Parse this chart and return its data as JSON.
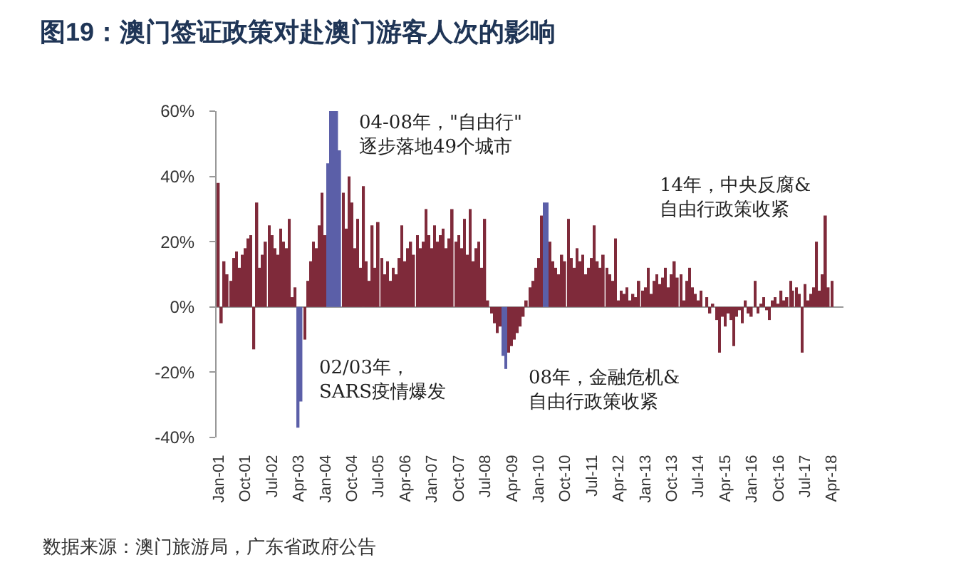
{
  "chart_data": {
    "type": "bar",
    "title": "图19：澳门签证政策对赴澳门游客人次的影响",
    "x": [
      "2001-01",
      "2001-02",
      "2001-03",
      "2001-04",
      "2001-05",
      "2001-06",
      "2001-07",
      "2001-08",
      "2001-09",
      "2001-10",
      "2001-11",
      "2001-12",
      "2002-01",
      "2002-02",
      "2002-03",
      "2002-04",
      "2002-05",
      "2002-06",
      "2002-07",
      "2002-08",
      "2002-09",
      "2002-10",
      "2002-11",
      "2002-12",
      "2003-01",
      "2003-02",
      "2003-03",
      "2003-04",
      "2003-05",
      "2003-06",
      "2003-07",
      "2003-08",
      "2003-09",
      "2003-10",
      "2003-11",
      "2003-12",
      "2004-01",
      "2004-02",
      "2004-03",
      "2004-04",
      "2004-05",
      "2004-06",
      "2004-07",
      "2004-08",
      "2004-09",
      "2004-10",
      "2004-11",
      "2004-12",
      "2005-01",
      "2005-02",
      "2005-03",
      "2005-04",
      "2005-05",
      "2005-06",
      "2005-07",
      "2005-08",
      "2005-09",
      "2005-10",
      "2005-11",
      "2005-12",
      "2006-01",
      "2006-02",
      "2006-03",
      "2006-04",
      "2006-05",
      "2006-06",
      "2006-07",
      "2006-08",
      "2006-09",
      "2006-10",
      "2006-11",
      "2006-12",
      "2007-01",
      "2007-02",
      "2007-03",
      "2007-04",
      "2007-05",
      "2007-06",
      "2007-07",
      "2007-08",
      "2007-09",
      "2007-10",
      "2007-11",
      "2007-12",
      "2008-01",
      "2008-02",
      "2008-03",
      "2008-04",
      "2008-05",
      "2008-06",
      "2008-07",
      "2008-08",
      "2008-09",
      "2008-10",
      "2008-11",
      "2008-12",
      "2009-01",
      "2009-02",
      "2009-03",
      "2009-04",
      "2009-05",
      "2009-06",
      "2009-07",
      "2009-08",
      "2009-09",
      "2009-10",
      "2009-11",
      "2009-12",
      "2010-01",
      "2010-02",
      "2010-03",
      "2010-04",
      "2010-05",
      "2010-06",
      "2010-07",
      "2010-08",
      "2010-09",
      "2010-10",
      "2010-11",
      "2010-12",
      "2011-01",
      "2011-02",
      "2011-03",
      "2011-04",
      "2011-05",
      "2011-06",
      "2011-07",
      "2011-08",
      "2011-09",
      "2011-10",
      "2011-11",
      "2011-12",
      "2012-01",
      "2012-02",
      "2012-03",
      "2012-04",
      "2012-05",
      "2012-06",
      "2012-07",
      "2012-08",
      "2012-09",
      "2012-10",
      "2012-11",
      "2012-12",
      "2013-01",
      "2013-02",
      "2013-03",
      "2013-04",
      "2013-05",
      "2013-06",
      "2013-07",
      "2013-08",
      "2013-09",
      "2013-10",
      "2013-11",
      "2013-12",
      "2014-01",
      "2014-02",
      "2014-03",
      "2014-04",
      "2014-05",
      "2014-06",
      "2014-07",
      "2014-08",
      "2014-09",
      "2014-10",
      "2014-11",
      "2014-12",
      "2015-01",
      "2015-02",
      "2015-03",
      "2015-04",
      "2015-05",
      "2015-06",
      "2015-07",
      "2015-08",
      "2015-09",
      "2015-10",
      "2015-11",
      "2015-12",
      "2016-01",
      "2016-02",
      "2016-03",
      "2016-04",
      "2016-05",
      "2016-06",
      "2016-07",
      "2016-08",
      "2016-09",
      "2016-10",
      "2016-11",
      "2016-12",
      "2017-01",
      "2017-02",
      "2017-03",
      "2017-04",
      "2017-05",
      "2017-06",
      "2017-07",
      "2017-08",
      "2017-09",
      "2017-10",
      "2017-11",
      "2017-12",
      "2018-01",
      "2018-02",
      "2018-03",
      "2018-04"
    ],
    "values": [
      38,
      -5,
      14,
      10,
      8,
      15,
      17,
      12,
      16,
      18,
      21,
      22,
      -13,
      32,
      12,
      16,
      20,
      25,
      22,
      18,
      16,
      24,
      20,
      18,
      27,
      3,
      6,
      -37,
      -29,
      -10,
      8,
      14,
      20,
      18,
      25,
      35,
      22,
      44,
      60,
      60,
      60,
      48,
      35,
      24,
      40,
      32,
      18,
      27,
      12,
      37,
      14,
      8,
      25,
      12,
      26,
      15,
      10,
      14,
      8,
      12,
      10,
      15,
      25,
      14,
      18,
      20,
      16,
      22,
      18,
      20,
      30,
      22,
      18,
      25,
      20,
      22,
      24,
      18,
      21,
      30,
      20,
      22,
      18,
      27,
      16,
      30,
      14,
      18,
      20,
      12,
      27,
      2,
      -2,
      -5,
      -8,
      -6,
      -15,
      -19,
      -14,
      -12,
      -10,
      -8,
      -6,
      -3,
      2,
      6,
      8,
      12,
      15,
      28,
      32,
      32,
      20,
      14,
      12,
      10,
      16,
      14,
      27,
      15,
      12,
      18,
      14,
      16,
      10,
      12,
      15,
      25,
      14,
      12,
      16,
      12,
      10,
      8,
      21,
      2,
      5,
      4,
      6,
      2,
      4,
      3,
      8,
      5,
      6,
      12,
      4,
      8,
      10,
      7,
      9,
      12,
      6,
      10,
      14,
      9,
      10,
      2,
      8,
      12,
      6,
      4,
      2,
      5,
      0,
      3,
      -2,
      1,
      -4,
      -14,
      -3,
      -6,
      -2,
      -4,
      -12,
      -3,
      -1,
      -5,
      2,
      -2,
      -3,
      8,
      -2,
      1,
      3,
      -1,
      -4,
      2,
      3,
      1,
      5,
      2,
      3,
      8,
      5,
      6,
      4,
      -14,
      7,
      2,
      4,
      6,
      20,
      5,
      10,
      28,
      6,
      8
    ],
    "colors": [
      "#7f2a3a",
      "#7f2a3a",
      "#7f2a3a",
      "#7f2a3a",
      "#7f2a3a",
      "#7f2a3a",
      "#7f2a3a",
      "#7f2a3a",
      "#7f2a3a",
      "#7f2a3a",
      "#7f2a3a",
      "#7f2a3a",
      "#7f2a3a",
      "#7f2a3a",
      "#7f2a3a",
      "#7f2a3a",
      "#7f2a3a",
      "#7f2a3a",
      "#7f2a3a",
      "#7f2a3a",
      "#7f2a3a",
      "#7f2a3a",
      "#7f2a3a",
      "#7f2a3a",
      "#7f2a3a",
      "#7f2a3a",
      "#7f2a3a",
      "#5b5fa8",
      "#5b5fa8",
      "#7f2a3a",
      "#7f2a3a",
      "#7f2a3a",
      "#7f2a3a",
      "#7f2a3a",
      "#7f2a3a",
      "#7f2a3a",
      "#7f2a3a",
      "#5b5fa8",
      "#5b5fa8",
      "#5b5fa8",
      "#5b5fa8",
      "#5b5fa8",
      "#7f2a3a",
      "#7f2a3a",
      "#7f2a3a",
      "#7f2a3a",
      "#7f2a3a",
      "#7f2a3a",
      "#7f2a3a",
      "#7f2a3a",
      "#7f2a3a",
      "#7f2a3a",
      "#7f2a3a",
      "#7f2a3a",
      "#7f2a3a",
      "#7f2a3a",
      "#7f2a3a",
      "#7f2a3a",
      "#7f2a3a",
      "#7f2a3a",
      "#7f2a3a",
      "#7f2a3a",
      "#7f2a3a",
      "#7f2a3a",
      "#7f2a3a",
      "#7f2a3a",
      "#7f2a3a",
      "#7f2a3a",
      "#7f2a3a",
      "#7f2a3a",
      "#7f2a3a",
      "#7f2a3a",
      "#7f2a3a",
      "#7f2a3a",
      "#7f2a3a",
      "#7f2a3a",
      "#7f2a3a",
      "#7f2a3a",
      "#7f2a3a",
      "#7f2a3a",
      "#7f2a3a",
      "#7f2a3a",
      "#7f2a3a",
      "#7f2a3a",
      "#7f2a3a",
      "#7f2a3a",
      "#7f2a3a",
      "#7f2a3a",
      "#7f2a3a",
      "#7f2a3a",
      "#7f2a3a",
      "#7f2a3a",
      "#7f2a3a",
      "#7f2a3a",
      "#7f2a3a",
      "#7f2a3a",
      "#5b5fa8",
      "#5b5fa8",
      "#7f2a3a",
      "#7f2a3a",
      "#7f2a3a",
      "#7f2a3a",
      "#7f2a3a",
      "#7f2a3a",
      "#7f2a3a",
      "#7f2a3a",
      "#7f2a3a",
      "#7f2a3a",
      "#7f2a3a",
      "#7f2a3a",
      "#5b5fa8",
      "#5b5fa8",
      "#7f2a3a",
      "#7f2a3a",
      "#7f2a3a",
      "#7f2a3a",
      "#7f2a3a",
      "#7f2a3a",
      "#7f2a3a",
      "#7f2a3a",
      "#7f2a3a",
      "#7f2a3a",
      "#7f2a3a",
      "#7f2a3a",
      "#7f2a3a",
      "#7f2a3a",
      "#7f2a3a",
      "#7f2a3a",
      "#7f2a3a",
      "#7f2a3a",
      "#7f2a3a",
      "#7f2a3a",
      "#7f2a3a",
      "#7f2a3a",
      "#7f2a3a",
      "#7f2a3a",
      "#7f2a3a",
      "#7f2a3a",
      "#7f2a3a",
      "#7f2a3a",
      "#7f2a3a",
      "#7f2a3a",
      "#7f2a3a",
      "#7f2a3a",
      "#7f2a3a",
      "#7f2a3a",
      "#7f2a3a",
      "#7f2a3a",
      "#7f2a3a",
      "#7f2a3a",
      "#7f2a3a",
      "#7f2a3a",
      "#7f2a3a",
      "#7f2a3a",
      "#7f2a3a",
      "#7f2a3a",
      "#7f2a3a",
      "#7f2a3a",
      "#7f2a3a",
      "#7f2a3a",
      "#7f2a3a",
      "#7f2a3a",
      "#7f2a3a",
      "#7f2a3a",
      "#7f2a3a",
      "#7f2a3a",
      "#7f2a3a",
      "#7f2a3a",
      "#7f2a3a",
      "#7f2a3a",
      "#7f2a3a",
      "#7f2a3a",
      "#7f2a3a",
      "#7f2a3a",
      "#7f2a3a",
      "#7f2a3a",
      "#7f2a3a",
      "#7f2a3a",
      "#7f2a3a",
      "#7f2a3a",
      "#7f2a3a",
      "#7f2a3a",
      "#7f2a3a",
      "#7f2a3a",
      "#7f2a3a",
      "#7f2a3a",
      "#7f2a3a",
      "#7f2a3a",
      "#7f2a3a",
      "#7f2a3a",
      "#7f2a3a",
      "#7f2a3a",
      "#7f2a3a",
      "#7f2a3a",
      "#7f2a3a",
      "#7f2a3a",
      "#7f2a3a",
      "#7f2a3a",
      "#7f2a3a",
      "#7f2a3a",
      "#7f2a3a",
      "#7f2a3a",
      "#7f2a3a",
      "#7f2a3a",
      "#7f2a3a",
      "#7f2a3a",
      "#7f2a3a",
      "#7f2a3a"
    ],
    "xlim": [
      "2000-12-10",
      "2018-08-01"
    ],
    "xticks": [
      {
        "value": "2001-01",
        "label": "Jan-01"
      },
      {
        "value": "2001-10",
        "label": "Oct-01"
      },
      {
        "value": "2002-07",
        "label": "Jul-02"
      },
      {
        "value": "2003-04",
        "label": "Apr-03"
      },
      {
        "value": "2004-01",
        "label": "Jan-04"
      },
      {
        "value": "2004-10",
        "label": "Oct-04"
      },
      {
        "value": "2005-07",
        "label": "Jul-05"
      },
      {
        "value": "2006-04",
        "label": "Apr-06"
      },
      {
        "value": "2007-01",
        "label": "Jan-07"
      },
      {
        "value": "2007-10",
        "label": "Oct-07"
      },
      {
        "value": "2008-07",
        "label": "Jul-08"
      },
      {
        "value": "2009-04",
        "label": "Apr-09"
      },
      {
        "value": "2010-01",
        "label": "Jan-10"
      },
      {
        "value": "2010-10",
        "label": "Oct-10"
      },
      {
        "value": "2011-07",
        "label": "Jul-11"
      },
      {
        "value": "2012-04",
        "label": "Apr-12"
      },
      {
        "value": "2013-01",
        "label": "Jan-13"
      },
      {
        "value": "2013-10",
        "label": "Oct-13"
      },
      {
        "value": "2014-07",
        "label": "Jul-14"
      },
      {
        "value": "2015-04",
        "label": "Apr-15"
      },
      {
        "value": "2016-01",
        "label": "Jan-16"
      },
      {
        "value": "2016-10",
        "label": "Oct-16"
      },
      {
        "value": "2017-07",
        "label": "Jul-17"
      },
      {
        "value": "2018-04",
        "label": "Apr-18"
      }
    ],
    "ylim": [
      -40,
      60
    ],
    "yticks": [
      {
        "value": -40,
        "label": "-40%"
      },
      {
        "value": -20,
        "label": "-20%"
      },
      {
        "value": 0,
        "label": "0%"
      },
      {
        "value": 20,
        "label": "20%"
      },
      {
        "value": 40,
        "label": "40%"
      },
      {
        "value": 60,
        "label": "60%"
      }
    ],
    "annotations": [
      "04-08年，\"自由行\"\n逐步落地49个城市",
      "02/03年，\nSARS疫情爆发",
      "08年，金融危机&\n自由行政策收紧",
      "14年，中央反腐&\n自由行政策收紧",
      "数据来源：澳门旅游局，广东省政府公告"
    ]
  }
}
